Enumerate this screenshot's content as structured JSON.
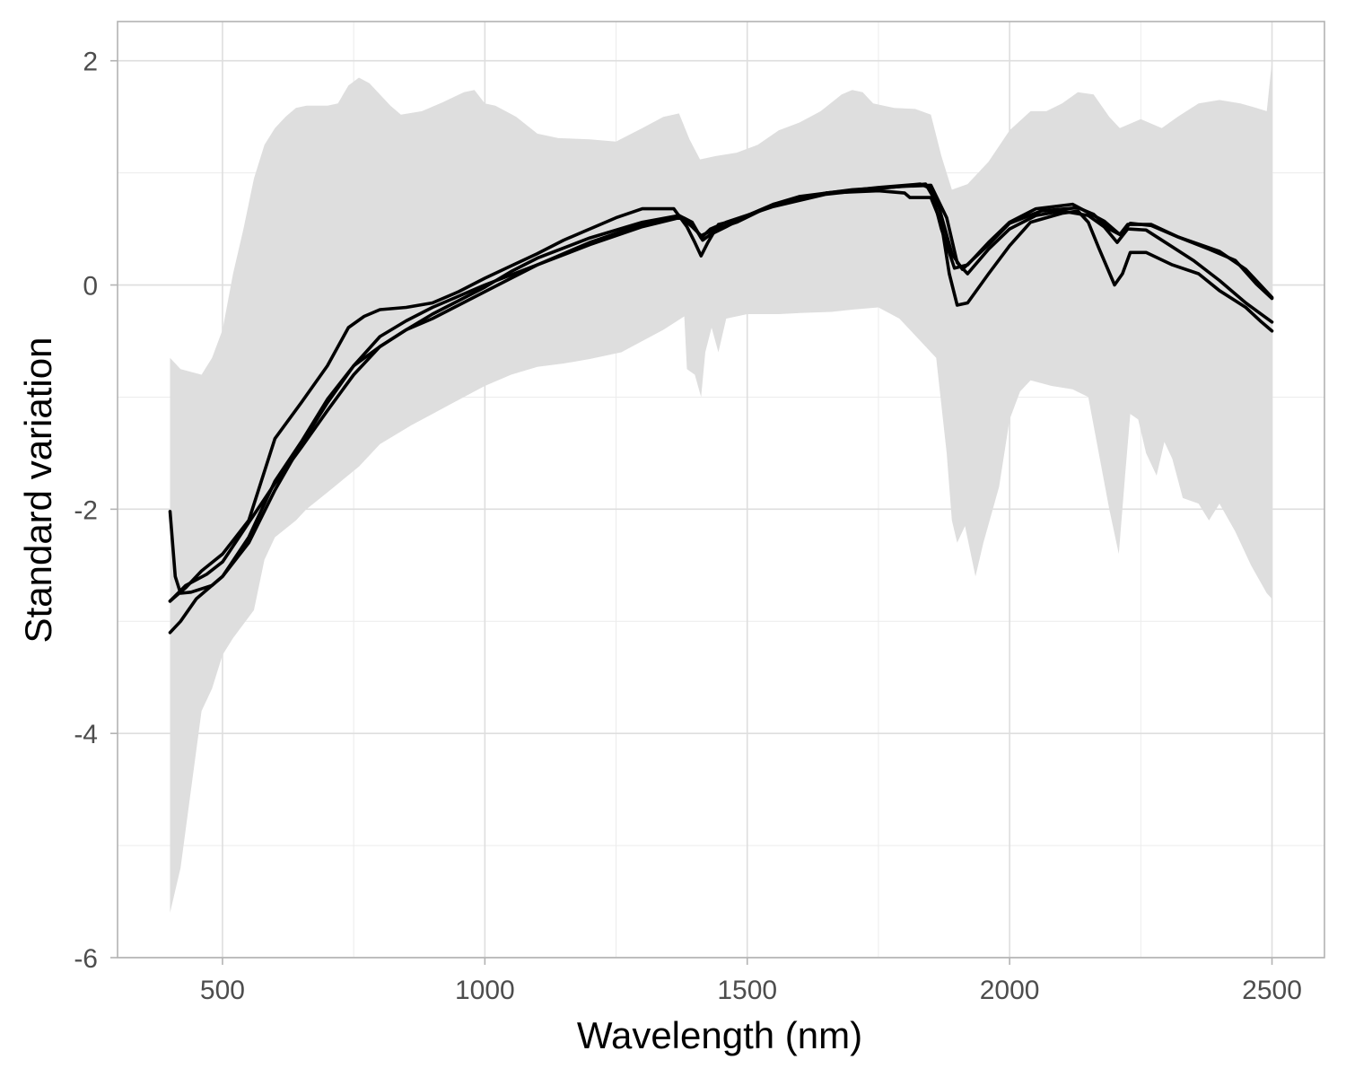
{
  "chart_data": {
    "type": "line",
    "title": "",
    "xlabel": "Wavelength (nm)",
    "ylabel": "Standard variation",
    "xlim": [
      300,
      2600
    ],
    "ylim": [
      -6,
      2.35
    ],
    "x_ticks": [
      "500",
      "1000",
      "1500",
      "2000",
      "2500"
    ],
    "y_ticks": [
      "2",
      "0",
      "-2",
      "-4",
      "-6"
    ],
    "x_tick_values": [
      500,
      1000,
      1500,
      2000,
      2500
    ],
    "y_tick_values": [
      2,
      0,
      -2,
      -4,
      -6
    ],
    "x_minor_values": [
      750,
      1250,
      1750,
      2250
    ],
    "y_minor_values": [
      1,
      -1,
      -3,
      -5
    ],
    "grid": true,
    "legend": "none",
    "colors": {
      "band": "#dedede",
      "lines": "#000000",
      "panel_border": "#b3b3b3",
      "grid": "#dedede"
    },
    "band": {
      "name": "",
      "upper": [
        [
          400,
          -0.65
        ],
        [
          420,
          -0.75
        ],
        [
          460,
          -0.8
        ],
        [
          480,
          -0.65
        ],
        [
          500,
          -0.4
        ],
        [
          520,
          0.1
        ],
        [
          540,
          0.5
        ],
        [
          560,
          0.95
        ],
        [
          580,
          1.25
        ],
        [
          600,
          1.4
        ],
        [
          620,
          1.5
        ],
        [
          640,
          1.58
        ],
        [
          660,
          1.6
        ],
        [
          700,
          1.6
        ],
        [
          720,
          1.62
        ],
        [
          740,
          1.78
        ],
        [
          760,
          1.85
        ],
        [
          780,
          1.8
        ],
        [
          800,
          1.7
        ],
        [
          820,
          1.6
        ],
        [
          840,
          1.52
        ],
        [
          880,
          1.55
        ],
        [
          920,
          1.63
        ],
        [
          960,
          1.72
        ],
        [
          980,
          1.74
        ],
        [
          1000,
          1.62
        ],
        [
          1020,
          1.6
        ],
        [
          1060,
          1.5
        ],
        [
          1100,
          1.35
        ],
        [
          1140,
          1.31
        ],
        [
          1200,
          1.3
        ],
        [
          1250,
          1.28
        ],
        [
          1300,
          1.4
        ],
        [
          1340,
          1.5
        ],
        [
          1370,
          1.53
        ],
        [
          1390,
          1.3
        ],
        [
          1410,
          1.12
        ],
        [
          1440,
          1.15
        ],
        [
          1480,
          1.18
        ],
        [
          1520,
          1.25
        ],
        [
          1560,
          1.38
        ],
        [
          1600,
          1.45
        ],
        [
          1640,
          1.55
        ],
        [
          1680,
          1.7
        ],
        [
          1700,
          1.74
        ],
        [
          1720,
          1.72
        ],
        [
          1740,
          1.62
        ],
        [
          1780,
          1.58
        ],
        [
          1820,
          1.57
        ],
        [
          1850,
          1.52
        ],
        [
          1870,
          1.15
        ],
        [
          1890,
          0.85
        ],
        [
          1920,
          0.9
        ],
        [
          1960,
          1.1
        ],
        [
          2000,
          1.38
        ],
        [
          2040,
          1.55
        ],
        [
          2070,
          1.55
        ],
        [
          2100,
          1.62
        ],
        [
          2130,
          1.72
        ],
        [
          2160,
          1.7
        ],
        [
          2190,
          1.5
        ],
        [
          2210,
          1.4
        ],
        [
          2250,
          1.48
        ],
        [
          2290,
          1.4
        ],
        [
          2320,
          1.5
        ],
        [
          2360,
          1.62
        ],
        [
          2400,
          1.65
        ],
        [
          2440,
          1.62
        ],
        [
          2470,
          1.58
        ],
        [
          2490,
          1.55
        ],
        [
          2500,
          2.0
        ]
      ],
      "lower": [
        [
          400,
          -5.6
        ],
        [
          420,
          -5.2
        ],
        [
          440,
          -4.5
        ],
        [
          460,
          -3.8
        ],
        [
          480,
          -3.6
        ],
        [
          500,
          -3.3
        ],
        [
          520,
          -3.15
        ],
        [
          560,
          -2.9
        ],
        [
          580,
          -2.45
        ],
        [
          600,
          -2.25
        ],
        [
          640,
          -2.1
        ],
        [
          660,
          -2.0
        ],
        [
          700,
          -1.85
        ],
        [
          760,
          -1.62
        ],
        [
          800,
          -1.42
        ],
        [
          860,
          -1.25
        ],
        [
          900,
          -1.15
        ],
        [
          960,
          -1.0
        ],
        [
          1000,
          -0.9
        ],
        [
          1050,
          -0.8
        ],
        [
          1100,
          -0.73
        ],
        [
          1150,
          -0.7
        ],
        [
          1200,
          -0.66
        ],
        [
          1260,
          -0.6
        ],
        [
          1300,
          -0.5
        ],
        [
          1340,
          -0.4
        ],
        [
          1380,
          -0.28
        ],
        [
          1385,
          -0.75
        ],
        [
          1400,
          -0.8
        ],
        [
          1412,
          -1.0
        ],
        [
          1420,
          -0.6
        ],
        [
          1432,
          -0.38
        ],
        [
          1445,
          -0.6
        ],
        [
          1460,
          -0.3
        ],
        [
          1500,
          -0.26
        ],
        [
          1560,
          -0.26
        ],
        [
          1600,
          -0.25
        ],
        [
          1660,
          -0.24
        ],
        [
          1700,
          -0.22
        ],
        [
          1750,
          -0.2
        ],
        [
          1790,
          -0.3
        ],
        [
          1840,
          -0.55
        ],
        [
          1860,
          -0.65
        ],
        [
          1880,
          -1.5
        ],
        [
          1890,
          -2.1
        ],
        [
          1900,
          -2.3
        ],
        [
          1915,
          -2.15
        ],
        [
          1935,
          -2.6
        ],
        [
          1950,
          -2.3
        ],
        [
          1980,
          -1.8
        ],
        [
          2000,
          -1.2
        ],
        [
          2020,
          -0.95
        ],
        [
          2040,
          -0.85
        ],
        [
          2080,
          -0.9
        ],
        [
          2120,
          -0.93
        ],
        [
          2150,
          -1.0
        ],
        [
          2170,
          -1.5
        ],
        [
          2190,
          -2.0
        ],
        [
          2208,
          -2.4
        ],
        [
          2220,
          -1.7
        ],
        [
          2230,
          -1.15
        ],
        [
          2245,
          -1.2
        ],
        [
          2260,
          -1.5
        ],
        [
          2280,
          -1.7
        ],
        [
          2295,
          -1.4
        ],
        [
          2310,
          -1.55
        ],
        [
          2330,
          -1.9
        ],
        [
          2360,
          -1.95
        ],
        [
          2380,
          -2.1
        ],
        [
          2400,
          -1.95
        ],
        [
          2430,
          -2.2
        ],
        [
          2460,
          -2.5
        ],
        [
          2490,
          -2.75
        ],
        [
          2500,
          -2.8
        ]
      ]
    },
    "series": [
      {
        "values": [
          [
            400,
            -2.02
          ],
          [
            410,
            -2.6
          ],
          [
            420,
            -2.75
          ],
          [
            440,
            -2.74
          ],
          [
            480,
            -2.68
          ],
          [
            500,
            -2.6
          ],
          [
            550,
            -2.3
          ],
          [
            600,
            -1.83
          ],
          [
            650,
            -1.42
          ],
          [
            700,
            -1.05
          ],
          [
            750,
            -0.72
          ],
          [
            800,
            -0.46
          ],
          [
            850,
            -0.32
          ],
          [
            900,
            -0.2
          ],
          [
            1000,
            0.0
          ],
          [
            1100,
            0.18
          ],
          [
            1200,
            0.36
          ],
          [
            1300,
            0.52
          ],
          [
            1370,
            0.6
          ],
          [
            1395,
            0.55
          ],
          [
            1415,
            0.4
          ],
          [
            1430,
            0.45
          ],
          [
            1460,
            0.52
          ],
          [
            1500,
            0.62
          ],
          [
            1550,
            0.72
          ],
          [
            1600,
            0.79
          ],
          [
            1700,
            0.85
          ],
          [
            1800,
            0.88
          ],
          [
            1850,
            0.89
          ],
          [
            1880,
            0.6
          ],
          [
            1900,
            0.2
          ],
          [
            1920,
            0.1
          ],
          [
            1960,
            0.32
          ],
          [
            2000,
            0.5
          ],
          [
            2050,
            0.62
          ],
          [
            2100,
            0.66
          ],
          [
            2150,
            0.62
          ],
          [
            2180,
            0.52
          ],
          [
            2205,
            0.38
          ],
          [
            2225,
            0.5
          ],
          [
            2260,
            0.49
          ],
          [
            2300,
            0.37
          ],
          [
            2350,
            0.22
          ],
          [
            2400,
            0.04
          ],
          [
            2450,
            -0.16
          ],
          [
            2500,
            -0.33
          ]
        ]
      },
      {
        "values": [
          [
            400,
            -3.1
          ],
          [
            420,
            -3.0
          ],
          [
            450,
            -2.8
          ],
          [
            500,
            -2.6
          ],
          [
            550,
            -2.25
          ],
          [
            600,
            -1.75
          ],
          [
            650,
            -1.4
          ],
          [
            700,
            -1.02
          ],
          [
            750,
            -0.72
          ],
          [
            800,
            -0.55
          ],
          [
            850,
            -0.4
          ],
          [
            900,
            -0.26
          ],
          [
            950,
            -0.14
          ],
          [
            1000,
            -0.02
          ],
          [
            1050,
            0.12
          ],
          [
            1100,
            0.24
          ],
          [
            1200,
            0.42
          ],
          [
            1300,
            0.56
          ],
          [
            1370,
            0.62
          ],
          [
            1395,
            0.52
          ],
          [
            1412,
            0.44
          ],
          [
            1430,
            0.48
          ],
          [
            1480,
            0.56
          ],
          [
            1550,
            0.72
          ],
          [
            1650,
            0.82
          ],
          [
            1750,
            0.87
          ],
          [
            1830,
            0.9
          ],
          [
            1850,
            0.86
          ],
          [
            1870,
            0.5
          ],
          [
            1895,
            0.15
          ],
          [
            1920,
            0.18
          ],
          [
            1960,
            0.38
          ],
          [
            2000,
            0.56
          ],
          [
            2050,
            0.68
          ],
          [
            2120,
            0.72
          ],
          [
            2180,
            0.57
          ],
          [
            2210,
            0.45
          ],
          [
            2230,
            0.55
          ],
          [
            2270,
            0.53
          ],
          [
            2320,
            0.43
          ],
          [
            2400,
            0.3
          ],
          [
            2450,
            0.14
          ],
          [
            2500,
            -0.11
          ]
        ]
      },
      {
        "values": [
          [
            400,
            -2.82
          ],
          [
            430,
            -2.7
          ],
          [
            460,
            -2.55
          ],
          [
            500,
            -2.4
          ],
          [
            550,
            -2.1
          ],
          [
            600,
            -1.37
          ],
          [
            650,
            -1.05
          ],
          [
            700,
            -0.72
          ],
          [
            740,
            -0.38
          ],
          [
            770,
            -0.28
          ],
          [
            800,
            -0.22
          ],
          [
            850,
            -0.2
          ],
          [
            900,
            -0.16
          ],
          [
            950,
            -0.06
          ],
          [
            1000,
            0.06
          ],
          [
            1050,
            0.17
          ],
          [
            1100,
            0.28
          ],
          [
            1150,
            0.4
          ],
          [
            1200,
            0.5
          ],
          [
            1250,
            0.6
          ],
          [
            1300,
            0.68
          ],
          [
            1360,
            0.68
          ],
          [
            1385,
            0.52
          ],
          [
            1400,
            0.38
          ],
          [
            1412,
            0.26
          ],
          [
            1425,
            0.38
          ],
          [
            1445,
            0.54
          ],
          [
            1480,
            0.58
          ],
          [
            1550,
            0.72
          ],
          [
            1650,
            0.82
          ],
          [
            1750,
            0.84
          ],
          [
            1800,
            0.82
          ],
          [
            1810,
            0.78
          ],
          [
            1850,
            0.78
          ],
          [
            1870,
            0.55
          ],
          [
            1885,
            0.1
          ],
          [
            1900,
            -0.18
          ],
          [
            1920,
            -0.16
          ],
          [
            1960,
            0.1
          ],
          [
            2000,
            0.35
          ],
          [
            2040,
            0.56
          ],
          [
            2100,
            0.64
          ],
          [
            2130,
            0.66
          ],
          [
            2150,
            0.56
          ],
          [
            2170,
            0.33
          ],
          [
            2200,
            0.0
          ],
          [
            2215,
            0.1
          ],
          [
            2230,
            0.29
          ],
          [
            2260,
            0.29
          ],
          [
            2310,
            0.18
          ],
          [
            2360,
            0.1
          ],
          [
            2400,
            -0.05
          ],
          [
            2450,
            -0.2
          ],
          [
            2480,
            -0.33
          ],
          [
            2500,
            -0.41
          ]
        ]
      },
      {
        "values": [
          [
            400,
            -2.82
          ],
          [
            430,
            -2.68
          ],
          [
            470,
            -2.58
          ],
          [
            500,
            -2.47
          ],
          [
            550,
            -2.12
          ],
          [
            600,
            -1.77
          ],
          [
            650,
            -1.45
          ],
          [
            700,
            -1.12
          ],
          [
            750,
            -0.8
          ],
          [
            800,
            -0.55
          ],
          [
            850,
            -0.4
          ],
          [
            900,
            -0.3
          ],
          [
            950,
            -0.18
          ],
          [
            1000,
            -0.06
          ],
          [
            1050,
            0.06
          ],
          [
            1100,
            0.18
          ],
          [
            1200,
            0.38
          ],
          [
            1300,
            0.54
          ],
          [
            1370,
            0.62
          ],
          [
            1395,
            0.56
          ],
          [
            1412,
            0.42
          ],
          [
            1430,
            0.5
          ],
          [
            1460,
            0.56
          ],
          [
            1550,
            0.7
          ],
          [
            1650,
            0.81
          ],
          [
            1750,
            0.86
          ],
          [
            1840,
            0.9
          ],
          [
            1865,
            0.7
          ],
          [
            1890,
            0.28
          ],
          [
            1910,
            0.14
          ],
          [
            1960,
            0.36
          ],
          [
            2000,
            0.55
          ],
          [
            2060,
            0.66
          ],
          [
            2130,
            0.69
          ],
          [
            2160,
            0.63
          ],
          [
            2190,
            0.5
          ],
          [
            2210,
            0.45
          ],
          [
            2225,
            0.54
          ],
          [
            2270,
            0.54
          ],
          [
            2320,
            0.43
          ],
          [
            2380,
            0.32
          ],
          [
            2430,
            0.22
          ],
          [
            2470,
            0.01
          ],
          [
            2500,
            -0.12
          ]
        ]
      }
    ]
  }
}
